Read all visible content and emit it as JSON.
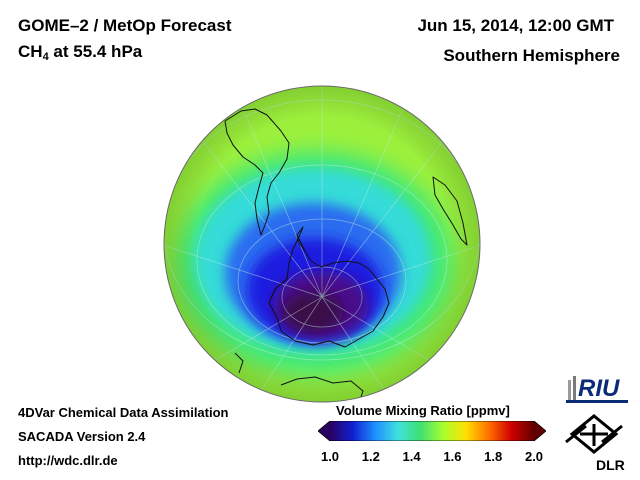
{
  "header": {
    "title": "GOME–2 / MetOp Forecast",
    "species": "CH",
    "species_sub": "4",
    "level": " at 55.4 hPa",
    "datetime": "Jun 15, 2014, 12:00 GMT",
    "hemisphere": "Southern Hemisphere"
  },
  "footer": {
    "line1": "4DVar Chemical Data Assimilation",
    "line2": "SACADA Version 2.4",
    "line3": "http://wdc.dlr.de"
  },
  "colorbar": {
    "title": "Volume Mixing Ratio [ppmv]",
    "min": 1.0,
    "max": 2.0,
    "ticks": [
      "1.0",
      "1.2",
      "1.4",
      "1.6",
      "1.8",
      "2.0"
    ],
    "colors": [
      "#2a0060",
      "#1020d0",
      "#1e90ff",
      "#40e0e0",
      "#40e070",
      "#a8ff30",
      "#ffe000",
      "#ff7000",
      "#d00000",
      "#600000"
    ]
  },
  "logos": {
    "riu": "RIU",
    "dlr": "DLR"
  },
  "map_colors": {
    "background": "#9cf03c",
    "ring": "#3fe87a",
    "cyan": "#35dcd8",
    "blue": "#2a6cf0",
    "deep_blue": "#1e1ee0",
    "purple": "#4a0a8c",
    "core": "#3a0848"
  }
}
